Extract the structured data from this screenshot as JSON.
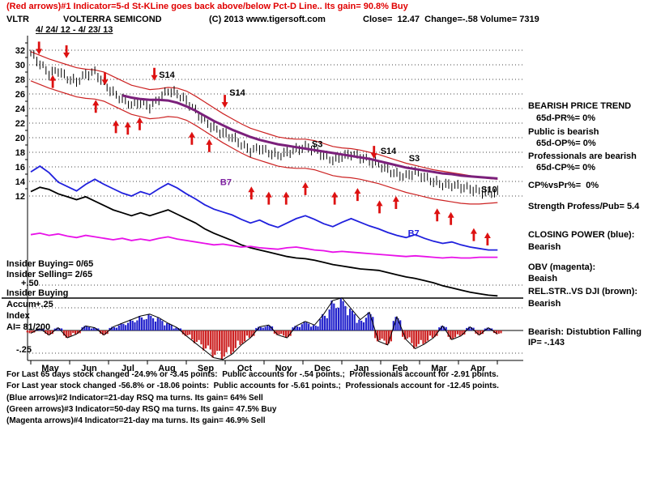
{
  "header": {
    "line1": "(Red arrows)#1 Indicator=5-d St-KLine goes back above/below Pct-D Line.. Its gain= 90.8% Buy",
    "ticker": "VLTR",
    "company": "VOLTERRA SEMICOND",
    "copyright": "(C) 2013 www.tigersoft.com",
    "quote": "Close=  12.47  Change=-.58 Volume= 7319",
    "date_range": "4/ 24/ 12 - 4/ 23/ 13"
  },
  "left_labels": {
    "insider_buying": "Insider Buying= 0/65",
    "insider_selling": "Insider Selling= 2/65",
    "plus50": "+.50",
    "accum_line1": "Insider Buying",
    "accum_line2": "Accum",
    "plus25": "+.25",
    "accum_line3": "Index",
    "ai": "AI= 81/200",
    "minus25": "-.25"
  },
  "right_panel": {
    "trend_title": "BEARISH PRICE TREND",
    "pr": "65d-PR%= 0%",
    "public_state": "Public is bearish",
    "op": "65d-OP%= 0%",
    "professional_state": "Professionals are bearish",
    "cp": "65d-CP%= 0%",
    "cp_vs_pr": "CP%vsPr%=  0%",
    "strength": "Strength Profess/Pub= 5.4",
    "closing_power_title": "CLOSING POWER (blue):",
    "closing_power_state": "Bearish",
    "obv_title": "OBV (magenta):",
    "obv_state": "Beaish",
    "rel_str_title": "REL.STR..VS DJI (brown):",
    "rel_str_state": "Bearish",
    "distribution": "Bearish: Distubtion Falling",
    "ip": "IP= -.143"
  },
  "footer": {
    "lines": [
      "For Last 65 days stock changed -24.9% or -3.45 points:  Public accounts for -.54 points.;  Professionals account for -2.91 points.",
      "For Last year stock changed -56.8% or -18.06 points:  Public accounts for -5.61 points.;  Professionals account for -12.45 points.",
      "(Blue arrows)#2 Indicator=21-day RSQ ma turns. Its gain= 64% Sell",
      "(Green arrows)#3 Indicator=50-day RSQ ma turns. Its gain= 47.5% Buy",
      "(Magenta arrows)#4 Indicator=21-day ma turns. Its gain= 46.9% Sell"
    ]
  },
  "chart_data": {
    "type": "line",
    "title": "VLTR  VOLTERRA SEMICOND",
    "last_close": 12.47,
    "change": -0.58,
    "volume": 7319,
    "x_axis": {
      "unit": "weeks, 4/24/12 - 4/23/13",
      "months": [
        "May",
        "Jun",
        "Jul",
        "Aug",
        "Sep",
        "Oct",
        "Nov",
        "Dec",
        "Jan",
        "Feb",
        "Mar",
        "Apr"
      ]
    },
    "price_axis": {
      "min": 12,
      "max": 32,
      "ticks": [
        32,
        30,
        28,
        26,
        24,
        22,
        20,
        18,
        16,
        14,
        12
      ]
    },
    "series": [
      {
        "name": "upper_band",
        "style": "band",
        "color": "#cc2222",
        "width": 1.2,
        "values": [
          31.8,
          31.3,
          30.8,
          30.4,
          30.0,
          29.6,
          29.4,
          29.3,
          29.0,
          28.4,
          27.8,
          27.2,
          26.9,
          26.6,
          26.7,
          26.9,
          26.8,
          26.4,
          25.7,
          24.9,
          24.1,
          23.3,
          22.6,
          21.9,
          21.3,
          20.9,
          20.5,
          20.1,
          19.9,
          19.8,
          19.8,
          19.6,
          19.2,
          18.8,
          18.6,
          18.5,
          18.3,
          18.0,
          17.7,
          17.3,
          16.9,
          16.5,
          16.2,
          15.9,
          15.6,
          15.4,
          15.2,
          15.0,
          14.8,
          14.6,
          14.4,
          14.3
        ]
      },
      {
        "name": "lower_band",
        "style": "band",
        "color": "#cc2222",
        "width": 1.2,
        "values": [
          27.8,
          27.3,
          26.8,
          26.4,
          26.0,
          25.6,
          25.4,
          25.3,
          25.0,
          24.4,
          23.8,
          23.2,
          22.9,
          22.6,
          22.7,
          22.9,
          22.8,
          22.4,
          21.7,
          20.9,
          20.1,
          19.3,
          18.6,
          17.9,
          17.3,
          16.9,
          16.5,
          16.1,
          15.9,
          15.8,
          15.8,
          15.6,
          15.2,
          14.8,
          14.6,
          14.5,
          14.3,
          14.0,
          13.7,
          13.3,
          12.9,
          12.5,
          12.2,
          11.9,
          11.6,
          11.4,
          11.2,
          11.0,
          10.9,
          10.9,
          11.0,
          11.1
        ]
      },
      {
        "name": "price_close",
        "style": "bars",
        "color": "#000000",
        "values": [
          31.6,
          30.0,
          28.7,
          29.3,
          28.3,
          27.7,
          28.5,
          28.9,
          27.5,
          26.3,
          25.3,
          24.4,
          24.7,
          24.3,
          25.5,
          26.5,
          25.9,
          24.9,
          23.7,
          22.5,
          21.4,
          20.5,
          19.9,
          19.1,
          18.4,
          18.7,
          17.9,
          17.4,
          17.9,
          18.5,
          18.9,
          18.3,
          17.4,
          16.9,
          17.5,
          17.9,
          17.3,
          16.7,
          16.3,
          15.7,
          15.1,
          14.7,
          15.1,
          14.5,
          14.1,
          13.7,
          13.5,
          13.1,
          12.9,
          12.7,
          12.6,
          12.5
        ]
      },
      {
        "name": "ma_65d",
        "style": "ma",
        "color": "#7b207b",
        "width": 3,
        "values": [
          null,
          null,
          null,
          null,
          null,
          null,
          null,
          null,
          null,
          null,
          25.8,
          25.5,
          25.3,
          25.2,
          25.2,
          25.1,
          24.8,
          24.3,
          23.7,
          23.0,
          22.3,
          21.7,
          21.1,
          20.6,
          20.1,
          19.7,
          19.4,
          19.1,
          18.9,
          18.7,
          18.5,
          18.3,
          18.1,
          17.9,
          17.7,
          17.5,
          17.3,
          17.1,
          16.8,
          16.5,
          16.2,
          15.9,
          15.7,
          15.5,
          15.3,
          15.1,
          15.0,
          14.8,
          14.7,
          14.6,
          14.5,
          14.4
        ]
      },
      {
        "name": "closing_power",
        "style": "line",
        "color": "#2020dd",
        "width": 1.8,
        "values": [
          15.3,
          16.1,
          15.2,
          13.9,
          13.3,
          12.7,
          13.6,
          14.3,
          13.6,
          13.0,
          12.4,
          12.0,
          12.6,
          12.2,
          13.0,
          13.7,
          13.1,
          12.3,
          11.6,
          10.8,
          10.2,
          9.8,
          9.4,
          8.8,
          8.3,
          8.7,
          8.1,
          7.7,
          8.3,
          8.9,
          9.3,
          8.8,
          8.2,
          7.8,
          8.4,
          8.9,
          8.4,
          7.9,
          7.5,
          7.0,
          6.6,
          6.3,
          6.7,
          6.2,
          5.8,
          5.5,
          5.7,
          5.3,
          5.0,
          4.8,
          4.6,
          4.6
        ]
      },
      {
        "name": "rel_strength_vs_dji",
        "style": "line",
        "color": "#000000",
        "width": 1.8,
        "values": [
          12.6,
          13.2,
          12.9,
          12.3,
          11.9,
          11.5,
          11.9,
          11.3,
          10.7,
          10.1,
          9.7,
          9.3,
          9.7,
          9.3,
          9.7,
          10.1,
          9.5,
          8.9,
          8.3,
          7.5,
          6.9,
          6.4,
          5.9,
          5.3,
          4.9,
          4.6,
          4.3,
          4.0,
          3.7,
          3.5,
          3.4,
          3.2,
          2.9,
          2.6,
          2.4,
          2.2,
          2.0,
          1.9,
          1.8,
          1.5,
          1.2,
          0.9,
          0.7,
          0.4,
          0.1,
          -0.3,
          -0.6,
          -0.9,
          -1.2,
          -1.4,
          -1.6,
          -1.7
        ]
      },
      {
        "name": "obv",
        "style": "line",
        "color": "#e811e8",
        "width": 1.8,
        "values": [
          6.7,
          6.9,
          6.6,
          6.8,
          6.5,
          6.3,
          6.6,
          6.4,
          6.2,
          6.0,
          6.2,
          5.9,
          6.1,
          5.9,
          6.2,
          6.4,
          6.1,
          5.9,
          5.7,
          5.5,
          5.3,
          5.4,
          5.2,
          5.0,
          5.1,
          4.9,
          4.8,
          4.7,
          4.9,
          5.0,
          4.8,
          4.6,
          4.5,
          4.3,
          4.4,
          4.3,
          4.2,
          4.1,
          4.0,
          3.9,
          3.8,
          3.7,
          3.8,
          3.7,
          3.6,
          3.5,
          3.6,
          3.5,
          3.5,
          3.6,
          3.6,
          3.6
        ]
      }
    ],
    "signals": {
      "arrow_color": "#dd1111",
      "up_arrows": [
        [
          2.4,
          28.6
        ],
        [
          7.1,
          25.2
        ],
        [
          9.3,
          22.4
        ],
        [
          10.6,
          22.2
        ],
        [
          11.9,
          22.8
        ],
        [
          17.6,
          20.8
        ],
        [
          19.5,
          19.8
        ],
        [
          24.1,
          13.3
        ],
        [
          26.0,
          12.6
        ],
        [
          27.9,
          12.6
        ],
        [
          30.0,
          13.9
        ],
        [
          33.2,
          12.6
        ],
        [
          35.7,
          13.1
        ],
        [
          38.1,
          11.4
        ],
        [
          39.9,
          12.0
        ],
        [
          44.4,
          10.3
        ],
        [
          45.9,
          9.8
        ],
        [
          48.4,
          7.6
        ],
        [
          49.9,
          7.0
        ]
      ],
      "down_arrows": [
        [
          0.9,
          31.4
        ],
        [
          3.9,
          30.9
        ],
        [
          8.1,
          27.2
        ],
        [
          13.5,
          27.8
        ],
        [
          21.2,
          24.1
        ],
        [
          37.5,
          17.1
        ]
      ],
      "labels": [
        {
          "text": "S14",
          "w": 14.0,
          "p": 28.2,
          "color": "#000000"
        },
        {
          "text": "S14",
          "w": 21.7,
          "p": 25.8,
          "color": "#000000"
        },
        {
          "text": "S3",
          "w": 30.7,
          "p": 18.7,
          "color": "#000000"
        },
        {
          "text": "S14",
          "w": 38.2,
          "p": 17.8,
          "color": "#000000"
        },
        {
          "text": "S3",
          "w": 41.3,
          "p": 16.8,
          "color": "#000000"
        },
        {
          "text": "S10",
          "w": 49.2,
          "p": 12.5,
          "color": "#000000"
        },
        {
          "text": "B7",
          "w": 20.7,
          "p": 13.5,
          "color": "#7d1fa0"
        },
        {
          "text": "B7",
          "w": 41.2,
          "p": 6.5,
          "color": "#2020dd"
        }
      ]
    },
    "accum_index": {
      "axis_ticks": [
        0.5,
        0.25,
        -0.25
      ],
      "pos_color": "#2222cc",
      "neg_color": "#cc2222",
      "values": [
        -0.03,
        0.02,
        -0.05,
        0.03,
        -0.08,
        -0.04,
        0.05,
        0.03,
        -0.05,
        0.04,
        0.08,
        0.12,
        0.16,
        0.18,
        0.14,
        0.08,
        0.03,
        -0.06,
        -0.14,
        -0.22,
        -0.3,
        -0.32,
        -0.26,
        -0.16,
        -0.08,
        0.04,
        0.06,
        -0.05,
        -0.08,
        0.05,
        0.1,
        0.06,
        0.18,
        0.33,
        0.36,
        0.24,
        0.12,
        0.2,
        -0.12,
        -0.16,
        0.15,
        -0.1,
        -0.2,
        -0.15,
        -0.08,
        0.05,
        -0.1,
        -0.06,
        0.04,
        -0.05,
        0.03,
        -0.04
      ]
    }
  }
}
